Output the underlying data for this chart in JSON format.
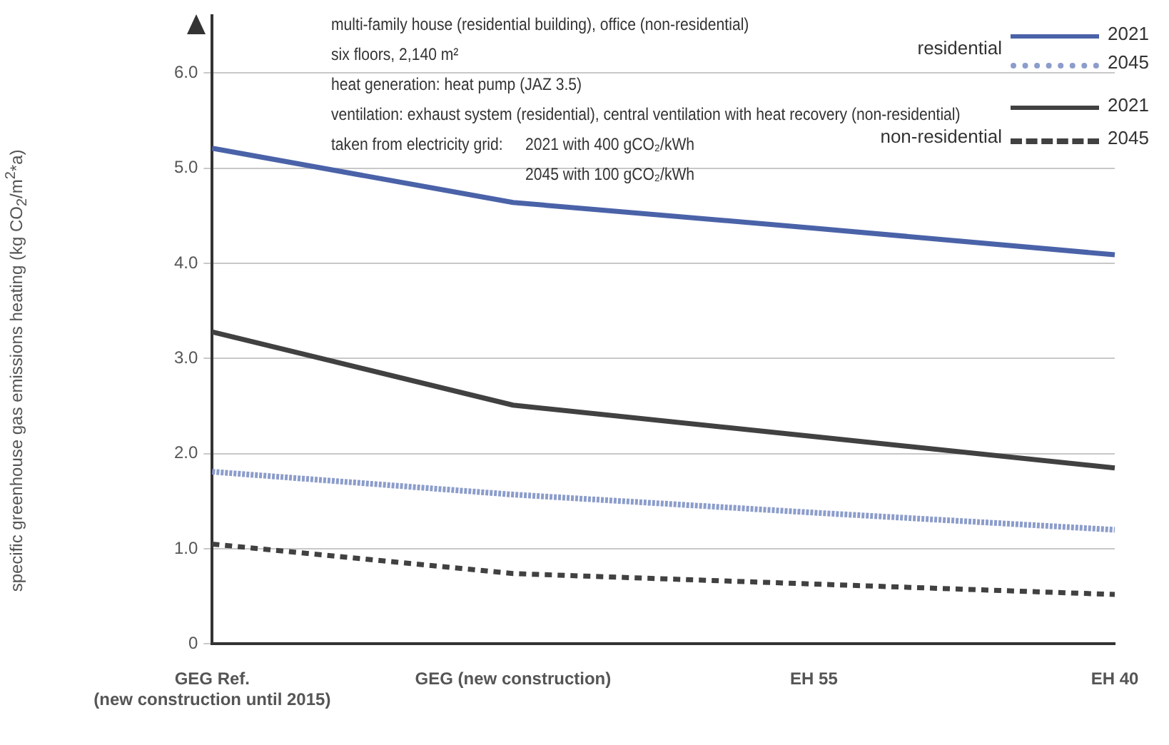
{
  "chart_data": {
    "type": "line",
    "ylabel": "specific greenhouse gas emissions heating (kg CO$_{2}$/m$^{2}$*a)",
    "categories": [
      "GEG Ref.\n(new construction until 2015)",
      "GEG (new construction)",
      "EH 55",
      "EH 40"
    ],
    "series": [
      {
        "name": "2021",
        "color": "#4a62a8",
        "line_style": "solid",
        "values": [
          5.21,
          4.64,
          4.37,
          4.09
        ]
      },
      {
        "name": "2045",
        "color": "#8c9dcb",
        "line_style": "dotted",
        "values": [
          1.81,
          1.57,
          1.38,
          1.2
        ]
      },
      {
        "name": "2021",
        "color": "#414141",
        "line_style": "solid",
        "values": [
          3.28,
          2.51,
          2.18,
          1.85
        ]
      },
      {
        "name": "2045",
        "color": "#414141",
        "line_style": "dashed",
        "values": [
          1.05,
          0.74,
          0.63,
          0.52
        ]
      }
    ],
    "ylim": [
      0,
      6.6
    ],
    "yticks": [
      0,
      {
        "value": 1,
        "label": "1.0"
      },
      {
        "value": 2,
        "label": "2.0"
      },
      {
        "value": 3,
        "label": "3.0"
      },
      {
        "value": 4,
        "label": "4.0"
      },
      {
        "value": 5,
        "label": "5.0"
      },
      {
        "value": 6,
        "label": "6.0"
      }
    ],
    "grid": "y",
    "legend": "top right",
    "marker": "none",
    "annotations": [
      "multi-family house (residential building), office (non-residential)",
      "six floors, 2,140 m²",
      "heat generation: heat pump (JAZ 3.5)",
      "ventilation: exhaust system (residential), central ventilation with heat recovery (non-residential)",
      "taken from electricity grid:",
      "2021 with 400 gCO₂/kWh",
      "2045 with 100 gCO₂/kWh",
      "residential",
      "non-residential"
    ]
  }
}
